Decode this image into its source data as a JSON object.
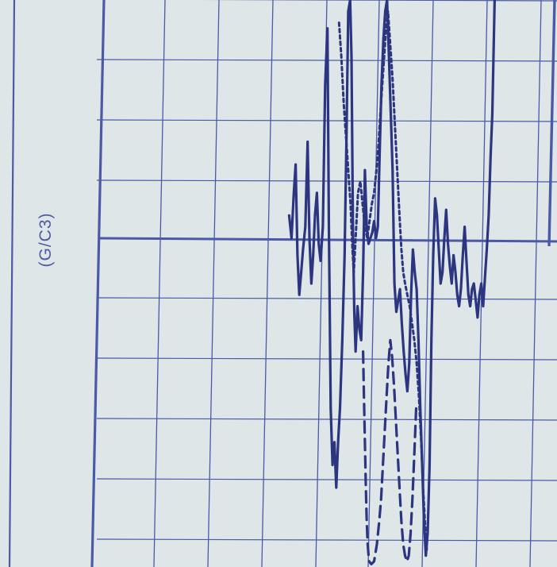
{
  "chart_data": {
    "type": "line",
    "unit_label": "(G/C3)",
    "x_range": [
      0,
      100
    ],
    "y_range": [
      0,
      100
    ],
    "grid": true,
    "colors": {
      "paper": "#dfe6e7",
      "grid": "#4a5aa6",
      "ink": "#2c3580",
      "label": "#4f5aa0"
    },
    "series": [
      {
        "style": "solid",
        "points": [
          [
            42.0,
            62.0
          ],
          [
            42.5,
            58.0
          ],
          [
            43.0,
            66.0
          ],
          [
            43.4,
            71.0
          ],
          [
            43.8,
            55.0
          ],
          [
            44.2,
            48.0
          ],
          [
            44.6,
            52.0
          ],
          [
            45.0,
            56.0
          ],
          [
            45.5,
            60.0
          ],
          [
            46.0,
            75.0
          ],
          [
            46.4,
            58.0
          ],
          [
            46.8,
            50.0
          ],
          [
            47.2,
            55.0
          ],
          [
            47.6,
            62.0
          ],
          [
            48.0,
            66.0
          ],
          [
            48.4,
            57.0
          ],
          [
            48.8,
            54.0
          ],
          [
            49.3,
            60.0
          ],
          [
            49.8,
            85.0
          ],
          [
            50.3,
            95.0
          ],
          [
            50.6,
            60.0
          ],
          [
            51.0,
            28.0
          ],
          [
            51.4,
            18.0
          ],
          [
            51.8,
            22.0
          ],
          [
            52.2,
            14.0
          ],
          [
            52.6,
            22.0
          ],
          [
            53.0,
            28.0
          ],
          [
            53.5,
            40.0
          ],
          [
            54.0,
            55.0
          ],
          [
            54.4,
            75.0
          ],
          [
            54.8,
            98.0
          ],
          [
            55.2,
            100.0
          ],
          [
            55.5,
            90.0
          ],
          [
            55.8,
            60.0
          ],
          [
            56.1,
            45.0
          ],
          [
            56.4,
            38.0
          ],
          [
            56.8,
            46.0
          ],
          [
            57.2,
            42.0
          ],
          [
            57.6,
            40.0
          ],
          [
            58.0,
            52.0
          ],
          [
            58.4,
            70.0
          ],
          [
            58.8,
            60.0
          ],
          [
            59.2,
            57.0
          ],
          [
            59.6,
            58.0
          ],
          [
            60.0,
            59.0
          ],
          [
            60.4,
            61.0
          ],
          [
            60.8,
            58.0
          ],
          [
            61.2,
            60.0
          ],
          [
            61.6,
            73.0
          ],
          [
            62.0,
            85.0
          ],
          [
            62.4,
            93.0
          ],
          [
            62.8,
            98.0
          ],
          [
            63.2,
            100.0
          ],
          [
            63.6,
            90.0
          ],
          [
            64.0,
            80.0
          ],
          [
            64.4,
            70.0
          ],
          [
            64.8,
            50.0
          ],
          [
            65.2,
            45.0
          ],
          [
            65.6,
            47.0
          ],
          [
            66.0,
            49.0
          ],
          [
            66.4,
            43.0
          ],
          [
            66.8,
            38.0
          ],
          [
            67.2,
            34.0
          ],
          [
            67.6,
            31.0
          ],
          [
            68.0,
            36.0
          ],
          [
            68.4,
            48.0
          ],
          [
            68.8,
            56.0
          ],
          [
            69.2,
            52.0
          ],
          [
            69.6,
            49.0
          ],
          [
            70.0,
            40.0
          ],
          [
            70.4,
            28.0
          ],
          [
            70.8,
            18.0
          ],
          [
            71.2,
            8.0
          ],
          [
            71.6,
            2.0
          ],
          [
            72.0,
            6.0
          ],
          [
            72.4,
            18.0
          ],
          [
            72.8,
            40.0
          ],
          [
            73.2,
            55.0
          ],
          [
            73.6,
            65.0
          ],
          [
            74.0,
            62.0
          ],
          [
            74.4,
            56.0
          ],
          [
            74.8,
            50.0
          ],
          [
            75.2,
            52.0
          ],
          [
            75.6,
            58.0
          ],
          [
            76.0,
            63.0
          ],
          [
            76.4,
            57.0
          ],
          [
            76.8,
            53.0
          ],
          [
            77.2,
            50.0
          ],
          [
            77.6,
            55.0
          ],
          [
            78.0,
            52.0
          ],
          [
            78.4,
            48.0
          ],
          [
            78.8,
            46.0
          ],
          [
            79.2,
            49.0
          ],
          [
            79.6,
            55.0
          ],
          [
            80.0,
            60.0
          ],
          [
            80.4,
            54.0
          ],
          [
            80.8,
            48.0
          ],
          [
            81.2,
            46.0
          ],
          [
            81.6,
            49.0
          ],
          [
            82.0,
            50.0
          ],
          [
            82.4,
            47.0
          ],
          [
            82.8,
            44.0
          ],
          [
            83.2,
            48.0
          ],
          [
            83.6,
            50.0
          ],
          [
            84.0,
            46.0
          ],
          [
            84.4,
            51.0
          ],
          [
            84.8,
            56.0
          ],
          [
            85.2,
            62.0
          ],
          [
            85.6,
            72.0
          ],
          [
            86.0,
            80.0
          ],
          [
            86.5,
            100.0
          ]
        ]
      },
      {
        "style": "dotted",
        "points": [
          [
            52.8,
            96.0
          ],
          [
            53.3,
            90.0
          ],
          [
            53.8,
            82.0
          ],
          [
            54.3,
            76.0
          ],
          [
            54.8,
            70.0
          ],
          [
            55.3,
            64.0
          ],
          [
            55.7,
            56.0
          ],
          [
            56.0,
            52.0
          ],
          [
            56.4,
            58.0
          ],
          [
            56.9,
            66.0
          ],
          [
            57.4,
            68.0
          ],
          [
            57.9,
            64.0
          ],
          [
            58.4,
            60.0
          ],
          [
            58.9,
            58.0
          ],
          [
            59.4,
            61.0
          ],
          [
            59.9,
            64.0
          ],
          [
            60.4,
            66.0
          ],
          [
            60.9,
            70.0
          ],
          [
            61.4,
            75.0
          ],
          [
            61.9,
            82.0
          ],
          [
            62.4,
            88.0
          ],
          [
            62.9,
            94.0
          ],
          [
            63.4,
            98.0
          ],
          [
            63.9,
            92.0
          ],
          [
            64.4,
            86.0
          ],
          [
            64.9,
            78.0
          ],
          [
            65.4,
            70.0
          ],
          [
            65.9,
            62.0
          ],
          [
            66.3,
            56.0
          ],
          [
            66.7,
            52.0
          ],
          [
            67.1,
            50.0
          ],
          [
            67.6,
            48.0
          ],
          [
            68.1,
            46.0
          ],
          [
            68.6,
            43.0
          ],
          [
            69.1,
            40.0
          ],
          [
            69.6,
            36.0
          ],
          [
            70.1,
            30.0
          ],
          [
            70.6,
            22.0
          ],
          [
            71.0,
            14.0
          ],
          [
            71.4,
            8.0
          ],
          [
            71.8,
            3.0
          ]
        ]
      },
      {
        "style": "dashed",
        "points": [
          [
            58.0,
            38.0
          ],
          [
            58.2,
            30.0
          ],
          [
            58.4,
            22.0
          ],
          [
            58.6,
            14.0
          ],
          [
            58.8,
            8.0
          ],
          [
            59.0,
            4.0
          ],
          [
            59.3,
            1.0
          ],
          [
            59.8,
            0.5
          ],
          [
            60.4,
            1.0
          ],
          [
            61.0,
            4.0
          ],
          [
            61.5,
            8.0
          ],
          [
            61.9,
            12.0
          ],
          [
            62.3,
            18.0
          ],
          [
            62.7,
            24.0
          ],
          [
            63.1,
            30.0
          ],
          [
            63.5,
            36.0
          ],
          [
            63.9,
            40.0
          ],
          [
            64.3,
            37.0
          ],
          [
            64.7,
            32.0
          ],
          [
            65.1,
            26.0
          ],
          [
            65.5,
            20.0
          ],
          [
            65.9,
            14.0
          ],
          [
            66.3,
            8.0
          ],
          [
            66.7,
            4.0
          ],
          [
            67.1,
            2.0
          ],
          [
            67.5,
            1.0
          ],
          [
            67.9,
            2.0
          ],
          [
            68.3,
            6.0
          ],
          [
            68.7,
            12.0
          ],
          [
            69.1,
            20.0
          ],
          [
            69.5,
            28.0
          ]
        ]
      }
    ]
  }
}
